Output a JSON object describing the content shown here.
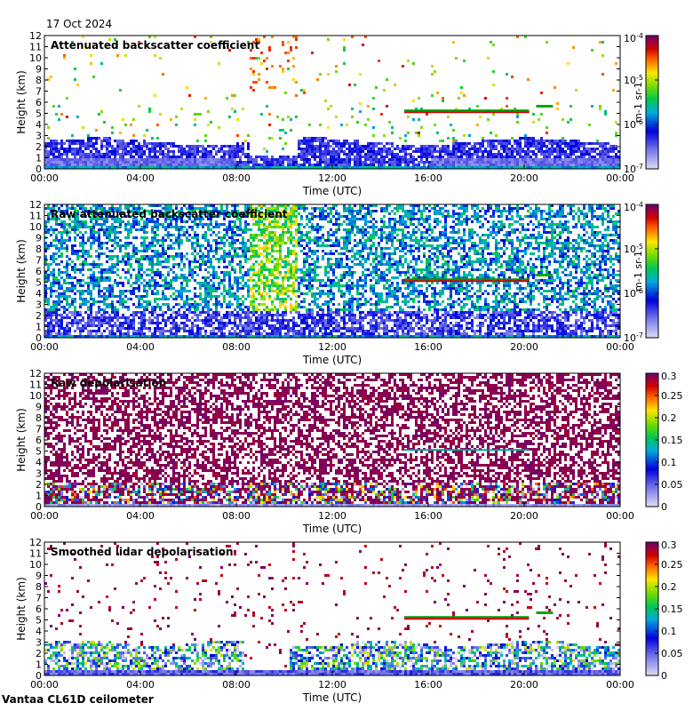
{
  "header": {
    "date": "17 Oct 2024"
  },
  "footer": {
    "site": "Vantaa CL61D ceilometer"
  },
  "chart_data": [
    {
      "type": "heatmap",
      "title": "Attenuated backscatter coefficient",
      "xlabel": "Time (UTC)",
      "ylabel": "Height (km)",
      "x_ticks": [
        "00:00",
        "04:00",
        "08:00",
        "12:00",
        "16:00",
        "20:00",
        "00:00"
      ],
      "y_ticks": [
        0,
        1,
        2,
        3,
        4,
        5,
        6,
        7,
        8,
        9,
        10,
        11,
        12
      ],
      "ylim": [
        0,
        12
      ],
      "xlim_hours": [
        0,
        24
      ],
      "colorbar": {
        "scale": "log",
        "ticks": [
          "10-7",
          "10-6",
          "10-5",
          "10-4"
        ],
        "tick_values": [
          1e-07,
          1e-06,
          1e-05,
          0.0001
        ],
        "label": "m-1 sr-1"
      },
      "features": [
        {
          "name": "boundary layer aerosol",
          "height_km": [
            0,
            2.7
          ],
          "time_hours": [
            0,
            24
          ]
        },
        {
          "name": "cloud layer",
          "height_km": 5.1,
          "time_hours": [
            15,
            20.2
          ]
        },
        {
          "name": "cloud layer",
          "height_km": 5.6,
          "time_hours": [
            20.5,
            21.2
          ]
        }
      ]
    },
    {
      "type": "heatmap",
      "title": "Raw attenuated backscatter coefficient",
      "xlabel": "Time (UTC)",
      "ylabel": "Height (km)",
      "x_ticks": [
        "00:00",
        "04:00",
        "08:00",
        "12:00",
        "16:00",
        "20:00",
        "00:00"
      ],
      "y_ticks": [
        0,
        1,
        2,
        3,
        4,
        5,
        6,
        7,
        8,
        9,
        10,
        11,
        12
      ],
      "ylim": [
        0,
        12
      ],
      "xlim_hours": [
        0,
        24
      ],
      "colorbar": {
        "scale": "log",
        "ticks": [
          "10-7",
          "10-6",
          "10-5",
          "10-4"
        ],
        "tick_values": [
          1e-07,
          1e-06,
          1e-05,
          0.0001
        ],
        "label": "m-1 sr-1"
      }
    },
    {
      "type": "heatmap",
      "title": "Raw depolarisation",
      "xlabel": "Time (UTC)",
      "ylabel": "Height (km)",
      "x_ticks": [
        "00:00",
        "04:00",
        "08:00",
        "12:00",
        "16:00",
        "20:00",
        "00:00"
      ],
      "y_ticks": [
        0,
        1,
        2,
        3,
        4,
        5,
        6,
        7,
        8,
        9,
        10,
        11,
        12
      ],
      "ylim": [
        0,
        12
      ],
      "xlim_hours": [
        0,
        24
      ],
      "colorbar": {
        "scale": "linear",
        "ticks": [
          "0",
          "0.05",
          "0.1",
          "0.15",
          "0.2",
          "0.25",
          "0.3"
        ],
        "tick_values": [
          0,
          0.05,
          0.1,
          0.15,
          0.2,
          0.25,
          0.3
        ]
      }
    },
    {
      "type": "heatmap",
      "title": "Smoothed lidar depolarisation",
      "xlabel": "Time (UTC)",
      "ylabel": "Height (km)",
      "x_ticks": [
        "00:00",
        "04:00",
        "08:00",
        "12:00",
        "16:00",
        "20:00",
        "00:00"
      ],
      "y_ticks": [
        0,
        1,
        2,
        3,
        4,
        5,
        6,
        7,
        8,
        9,
        10,
        11,
        12
      ],
      "ylim": [
        0,
        12
      ],
      "xlim_hours": [
        0,
        24
      ],
      "colorbar": {
        "scale": "linear",
        "ticks": [
          "0",
          "0.05",
          "0.1",
          "0.15",
          "0.2",
          "0.25",
          "0.3"
        ],
        "tick_values": [
          0,
          0.05,
          0.1,
          0.15,
          0.2,
          0.25,
          0.3
        ]
      }
    }
  ]
}
